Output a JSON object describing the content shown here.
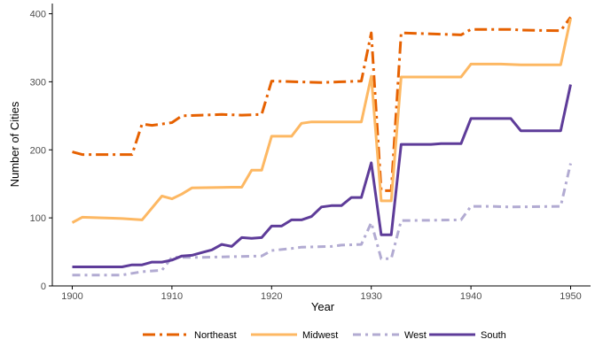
{
  "chart_data": {
    "type": "line",
    "title": "",
    "xlabel": "Year",
    "ylabel": "Number of Cities",
    "xlim": [
      1898,
      1952
    ],
    "ylim": [
      0,
      415
    ],
    "xticks": [
      1900,
      1910,
      1920,
      1930,
      1940,
      1950
    ],
    "yticks": [
      0,
      100,
      200,
      300,
      400
    ],
    "grid": false,
    "legend_position": "bottom",
    "series": [
      {
        "name": "Northeast",
        "color": "#e66101",
        "dash": "long-dash-dot",
        "points": [
          [
            1900,
            197
          ],
          [
            1901,
            193
          ],
          [
            1905,
            193
          ],
          [
            1906,
            193
          ],
          [
            1907,
            238
          ],
          [
            1908,
            236
          ],
          [
            1909,
            238
          ],
          [
            1910,
            240
          ],
          [
            1911,
            250
          ],
          [
            1913,
            251
          ],
          [
            1915,
            252
          ],
          [
            1917,
            251
          ],
          [
            1919,
            252
          ],
          [
            1920,
            301
          ],
          [
            1925,
            299
          ],
          [
            1929,
            301
          ],
          [
            1930,
            372
          ],
          [
            1931,
            140
          ],
          [
            1932,
            140
          ],
          [
            1933,
            372
          ],
          [
            1939,
            369
          ],
          [
            1940,
            377
          ],
          [
            1944,
            377
          ],
          [
            1945,
            376
          ],
          [
            1949,
            375
          ],
          [
            1950,
            395
          ]
        ]
      },
      {
        "name": "Midwest",
        "color": "#fdb863",
        "dash": "solid",
        "points": [
          [
            1900,
            93
          ],
          [
            1901,
            101
          ],
          [
            1903,
            100
          ],
          [
            1905,
            99
          ],
          [
            1907,
            97
          ],
          [
            1909,
            132
          ],
          [
            1910,
            128
          ],
          [
            1911,
            135
          ],
          [
            1912,
            144
          ],
          [
            1916,
            145
          ],
          [
            1917,
            145
          ],
          [
            1918,
            170
          ],
          [
            1919,
            170
          ],
          [
            1920,
            220
          ],
          [
            1922,
            220
          ],
          [
            1923,
            239
          ],
          [
            1924,
            241
          ],
          [
            1926,
            241
          ],
          [
            1928,
            241
          ],
          [
            1929,
            241
          ],
          [
            1930,
            308
          ],
          [
            1931,
            125
          ],
          [
            1932,
            125
          ],
          [
            1933,
            307
          ],
          [
            1936,
            307
          ],
          [
            1939,
            307
          ],
          [
            1940,
            326
          ],
          [
            1943,
            326
          ],
          [
            1945,
            325
          ],
          [
            1949,
            325
          ],
          [
            1950,
            393
          ]
        ]
      },
      {
        "name": "West",
        "color": "#b2abd2",
        "dash": "dash-dot",
        "points": [
          [
            1900,
            16
          ],
          [
            1905,
            16
          ],
          [
            1907,
            21
          ],
          [
            1909,
            23
          ],
          [
            1910,
            42
          ],
          [
            1913,
            42
          ],
          [
            1919,
            44
          ],
          [
            1920,
            52
          ],
          [
            1922,
            55
          ],
          [
            1923,
            57
          ],
          [
            1926,
            58
          ],
          [
            1927,
            60
          ],
          [
            1929,
            61
          ],
          [
            1930,
            93
          ],
          [
            1931,
            40
          ],
          [
            1932,
            40
          ],
          [
            1933,
            96
          ],
          [
            1939,
            97
          ],
          [
            1940,
            117
          ],
          [
            1942,
            117
          ],
          [
            1944,
            116
          ],
          [
            1949,
            117
          ],
          [
            1950,
            180
          ]
        ]
      },
      {
        "name": "South",
        "color": "#5e3c99",
        "dash": "solid",
        "points": [
          [
            1900,
            28
          ],
          [
            1905,
            28
          ],
          [
            1906,
            31
          ],
          [
            1907,
            31
          ],
          [
            1908,
            35
          ],
          [
            1909,
            35
          ],
          [
            1910,
            38
          ],
          [
            1911,
            44
          ],
          [
            1912,
            45
          ],
          [
            1913,
            49
          ],
          [
            1914,
            53
          ],
          [
            1915,
            61
          ],
          [
            1916,
            58
          ],
          [
            1917,
            71
          ],
          [
            1918,
            70
          ],
          [
            1919,
            71
          ],
          [
            1920,
            88
          ],
          [
            1921,
            88
          ],
          [
            1922,
            97
          ],
          [
            1923,
            97
          ],
          [
            1924,
            102
          ],
          [
            1925,
            116
          ],
          [
            1926,
            118
          ],
          [
            1927,
            118
          ],
          [
            1928,
            130
          ],
          [
            1929,
            130
          ],
          [
            1930,
            181
          ],
          [
            1931,
            75
          ],
          [
            1932,
            75
          ],
          [
            1933,
            208
          ],
          [
            1936,
            208
          ],
          [
            1937,
            209
          ],
          [
            1939,
            209
          ],
          [
            1940,
            246
          ],
          [
            1944,
            246
          ],
          [
            1945,
            228
          ],
          [
            1947,
            228
          ],
          [
            1949,
            228
          ],
          [
            1950,
            296
          ]
        ]
      }
    ]
  }
}
